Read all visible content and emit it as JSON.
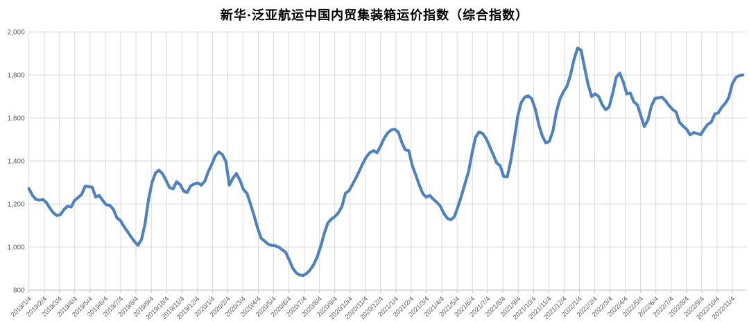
{
  "chart_data": {
    "type": "line",
    "title": "新华·泛亚航运中国内贸集装箱运价指数（综合指数）",
    "x_axis": {
      "tick_labels": [
        "2019/1/4",
        "2019/2/4",
        "2019/3/4",
        "2019/4/4",
        "2019/5/4",
        "2019/6/4",
        "2019/7/4",
        "2019/8/4",
        "2019/9/4",
        "2019/10/4",
        "2019/11/4",
        "2019/12/4",
        "2020/1/4",
        "2020/2/4",
        "2020/3/4",
        "2020/4/4",
        "2020/5/4",
        "2020/6/4",
        "2020/7/4",
        "2020/8/4",
        "2020/9/4",
        "2020/10/4",
        "2020/11/4",
        "2020/12/4",
        "2021/1/4",
        "2021/2/4",
        "2021/3/4",
        "2021/4/4",
        "2021/5/4",
        "2021/6/4",
        "2021/7/4",
        "2021/8/4",
        "2021/9/4",
        "2021/10/4",
        "2021/11/4",
        "2021/12/4",
        "2022/1/4",
        "2022/2/4",
        "2022/3/4",
        "2022/4/4",
        "2022/5/4",
        "2022/6/4",
        "2022/7/4",
        "2022/8/4",
        "2022/9/4",
        "2022/10/4",
        "2022/11/4"
      ],
      "rotation_deg": -45
    },
    "y_axis": {
      "range": [
        800,
        2000
      ],
      "ticks": [
        800,
        1000,
        1200,
        1400,
        1600,
        1800,
        2000
      ],
      "tick_labels": [
        "800",
        "1,000",
        "1,200",
        "1,400",
        "1,600",
        "1,800",
        "2,000"
      ]
    },
    "grid": {
      "show": true,
      "color": "#d9d9d9",
      "axis_color": "#bfbfbf"
    },
    "legend": {
      "show": false
    },
    "series": [
      {
        "name": "综合指数",
        "color": "#4F81BD",
        "start_date": "2019/1/4",
        "interval_days": 7,
        "values": [
          1272,
          1240,
          1222,
          1218,
          1221,
          1206,
          1180,
          1158,
          1146,
          1152,
          1175,
          1190,
          1186,
          1217,
          1230,
          1245,
          1283,
          1281,
          1278,
          1232,
          1240,
          1216,
          1196,
          1194,
          1176,
          1136,
          1124,
          1096,
          1073,
          1048,
          1026,
          1008,
          1035,
          1105,
          1220,
          1300,
          1345,
          1357,
          1340,
          1310,
          1276,
          1270,
          1304,
          1290,
          1260,
          1254,
          1285,
          1293,
          1298,
          1288,
          1306,
          1350,
          1385,
          1424,
          1442,
          1430,
          1398,
          1288,
          1320,
          1342,
          1310,
          1268,
          1250,
          1200,
          1148,
          1090,
          1042,
          1028,
          1014,
          1008,
          1006,
          1000,
          988,
          976,
          940,
          903,
          880,
          870,
          868,
          878,
          895,
          920,
          955,
          1005,
          1065,
          1112,
          1130,
          1142,
          1160,
          1188,
          1250,
          1262,
          1290,
          1322,
          1355,
          1390,
          1420,
          1440,
          1448,
          1438,
          1470,
          1505,
          1530,
          1544,
          1548,
          1535,
          1488,
          1452,
          1448,
          1380,
          1335,
          1288,
          1248,
          1232,
          1240,
          1222,
          1208,
          1190,
          1155,
          1133,
          1127,
          1142,
          1188,
          1238,
          1295,
          1350,
          1438,
          1510,
          1535,
          1528,
          1505,
          1468,
          1430,
          1392,
          1378,
          1328,
          1326,
          1400,
          1500,
          1610,
          1672,
          1697,
          1703,
          1688,
          1640,
          1568,
          1515,
          1484,
          1492,
          1540,
          1630,
          1688,
          1722,
          1748,
          1800,
          1872,
          1925,
          1915,
          1835,
          1755,
          1700,
          1712,
          1700,
          1662,
          1638,
          1652,
          1715,
          1790,
          1808,
          1768,
          1712,
          1716,
          1675,
          1662,
          1610,
          1560,
          1590,
          1655,
          1690,
          1694,
          1697,
          1680,
          1658,
          1640,
          1628,
          1580,
          1562,
          1548,
          1522,
          1532,
          1528,
          1522,
          1548,
          1570,
          1580,
          1618,
          1624,
          1650,
          1668,
          1695,
          1758,
          1788,
          1797,
          1800
        ]
      }
    ]
  }
}
